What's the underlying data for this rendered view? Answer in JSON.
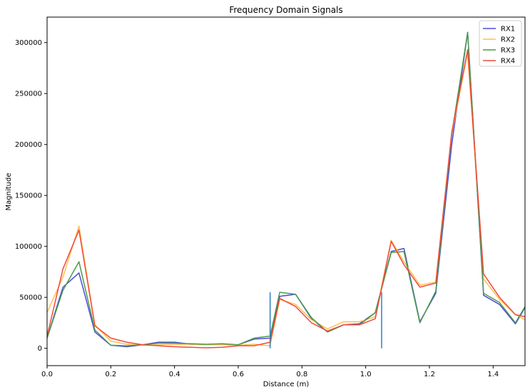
{
  "chart_data": {
    "type": "line",
    "title": "Frequency Domain Signals",
    "xlabel": "Distance (m)",
    "ylabel": "Magnitude",
    "xlim": [
      0,
      1.5
    ],
    "ylim": [
      -17000,
      325000
    ],
    "x_ticks": [
      "0.0",
      "0.2",
      "0.4",
      "0.6",
      "0.8",
      "1.0",
      "1.2",
      "1.4"
    ],
    "y_ticks": [
      "0",
      "50000",
      "100000",
      "150000",
      "200000",
      "250000",
      "300000"
    ],
    "grid": false,
    "legend_position": "top-right",
    "x": [
      0,
      0.05,
      0.1,
      0.15,
      0.2,
      0.25,
      0.3,
      0.35,
      0.4,
      0.45,
      0.5,
      0.55,
      0.6,
      0.65,
      0.7,
      0.73,
      0.78,
      0.83,
      0.88,
      0.93,
      0.98,
      1.03,
      1.08,
      1.12,
      1.17,
      1.22,
      1.27,
      1.32,
      1.37,
      1.42,
      1.47,
      1.5
    ],
    "series": [
      {
        "name": "RX1",
        "color": "#4b4bdb",
        "values": [
          10000,
          60000,
          74000,
          16000,
          3000,
          1500,
          3500,
          6000,
          6000,
          4000,
          3500,
          3500,
          3500,
          9000,
          10000,
          51000,
          53000,
          29000,
          16000,
          23000,
          24000,
          35000,
          95000,
          98000,
          26000,
          54000,
          200000,
          310000,
          52000,
          43000,
          24000,
          40000
        ]
      },
      {
        "name": "RX2",
        "color": "#fdbf4f",
        "values": [
          35000,
          70000,
          120000,
          23000,
          7000,
          4000,
          3000,
          3500,
          4000,
          4000,
          3500,
          3500,
          3000,
          4000,
          2500,
          48000,
          43000,
          28000,
          19000,
          26000,
          26000,
          31000,
          106000,
          85000,
          62000,
          65000,
          210000,
          290000,
          68000,
          48000,
          33000,
          28000
        ]
      },
      {
        "name": "RX3",
        "color": "#4c9a4c",
        "values": [
          10000,
          57000,
          85000,
          18000,
          3000,
          2500,
          3500,
          5000,
          5000,
          4500,
          4000,
          4500,
          3500,
          10000,
          12000,
          55000,
          53000,
          30000,
          16000,
          23000,
          23000,
          35000,
          94000,
          95000,
          25000,
          56000,
          210000,
          310000,
          54000,
          45000,
          25000,
          41000
        ]
      },
      {
        "name": "RX4",
        "color": "#f24a3a",
        "values": [
          12000,
          78000,
          116000,
          22000,
          10000,
          6000,
          3500,
          2500,
          1500,
          1000,
          500,
          1000,
          2500,
          2500,
          6000,
          49000,
          41000,
          25000,
          17000,
          23000,
          23000,
          29000,
          105000,
          82000,
          60000,
          64000,
          212000,
          293000,
          73000,
          50000,
          33000,
          31000
        ]
      }
    ],
    "markers": {
      "color": "#2a80c0",
      "lines": [
        {
          "x": 0.7,
          "y0": 0,
          "y1": 55000
        },
        {
          "x": 1.05,
          "y0": 0,
          "y1": 55000
        }
      ]
    }
  }
}
